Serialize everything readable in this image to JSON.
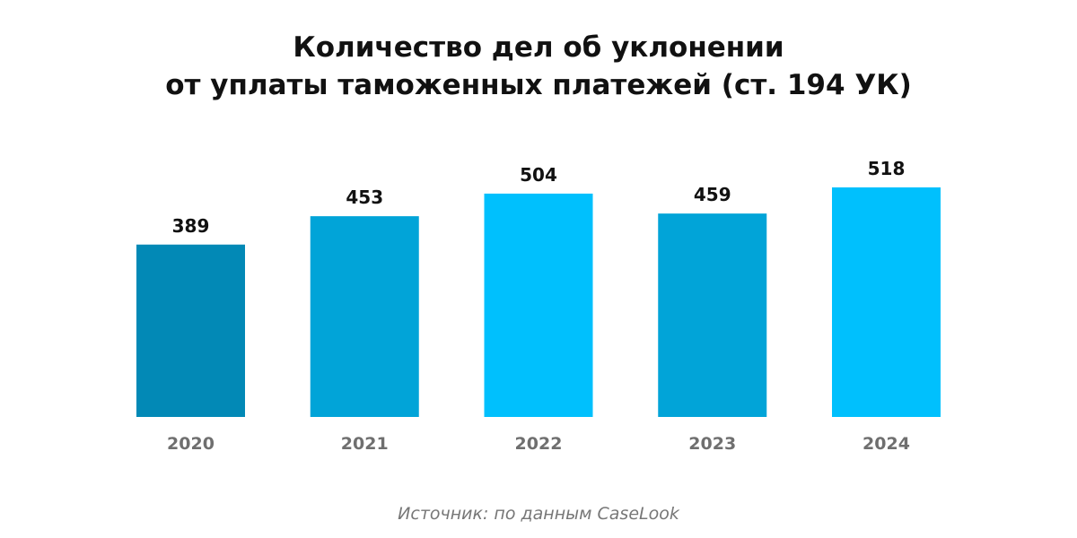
{
  "chart_data": {
    "type": "bar",
    "title_lines": [
      "Количество дел об уклонении",
      "от уплаты таможенных платежей (ст. 194 УК)"
    ],
    "categories": [
      "2020",
      "2021",
      "2022",
      "2023",
      "2024"
    ],
    "values": [
      389,
      453,
      504,
      459,
      518
    ],
    "data_labels": [
      "389",
      "453",
      "504",
      "459",
      "518"
    ],
    "bar_colors": [
      "#0289b6",
      "#01a4d8",
      "#00c0fd",
      "#01a4d8",
      "#00c0fd"
    ],
    "ylim": [
      0,
      518
    ],
    "grid": false,
    "legend": "none"
  },
  "source": "Источник: по данным CaseLook"
}
